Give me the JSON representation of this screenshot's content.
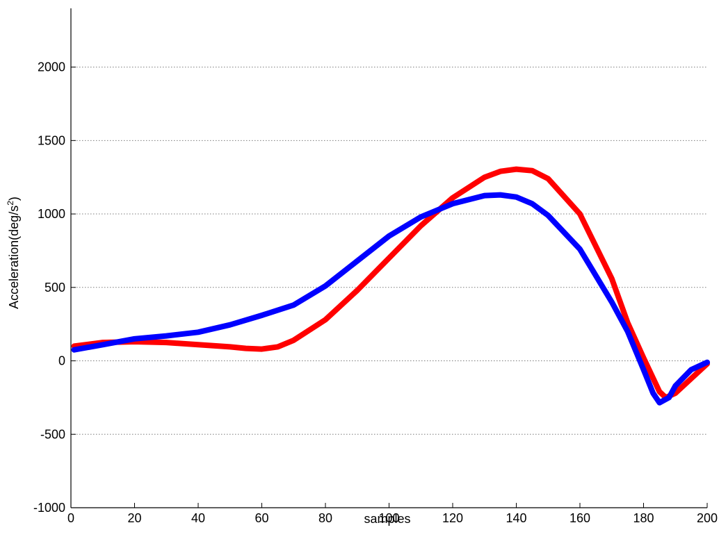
{
  "chart_data": {
    "type": "line",
    "title": "",
    "xlabel": "samples",
    "ylabel_prefix": "Acceleration(deg/s",
    "ylabel_sup": "2",
    "ylabel_suffix": ")",
    "xlim": [
      0,
      200
    ],
    "ylim": [
      -1000,
      2400
    ],
    "xticks": [
      0,
      20,
      40,
      60,
      80,
      100,
      120,
      140,
      160,
      180,
      200
    ],
    "yticks": [
      -1000,
      -500,
      0,
      500,
      1000,
      1500,
      2000
    ],
    "grid": "horizontal-dotted",
    "series": [
      {
        "color": "#ff0000",
        "x": [
          1,
          10,
          20,
          30,
          40,
          50,
          55,
          60,
          65,
          70,
          80,
          90,
          100,
          110,
          120,
          130,
          135,
          140,
          145,
          150,
          160,
          170,
          175,
          180,
          185,
          187,
          190,
          195,
          200
        ],
        "y": [
          100,
          125,
          130,
          125,
          110,
          95,
          85,
          80,
          95,
          140,
          280,
          480,
          700,
          920,
          1110,
          1250,
          1290,
          1305,
          1295,
          1240,
          1000,
          560,
          260,
          20,
          -210,
          -250,
          -220,
          -120,
          -20
        ]
      },
      {
        "color": "#0000ff",
        "x": [
          1,
          10,
          20,
          30,
          40,
          50,
          60,
          70,
          80,
          90,
          100,
          110,
          120,
          130,
          135,
          140,
          145,
          150,
          160,
          170,
          175,
          180,
          183,
          185,
          188,
          190,
          195,
          200
        ],
        "y": [
          75,
          110,
          150,
          170,
          195,
          245,
          310,
          380,
          510,
          680,
          850,
          980,
          1070,
          1125,
          1130,
          1115,
          1070,
          990,
          760,
          400,
          200,
          -60,
          -220,
          -285,
          -250,
          -170,
          -60,
          -10
        ]
      }
    ]
  }
}
